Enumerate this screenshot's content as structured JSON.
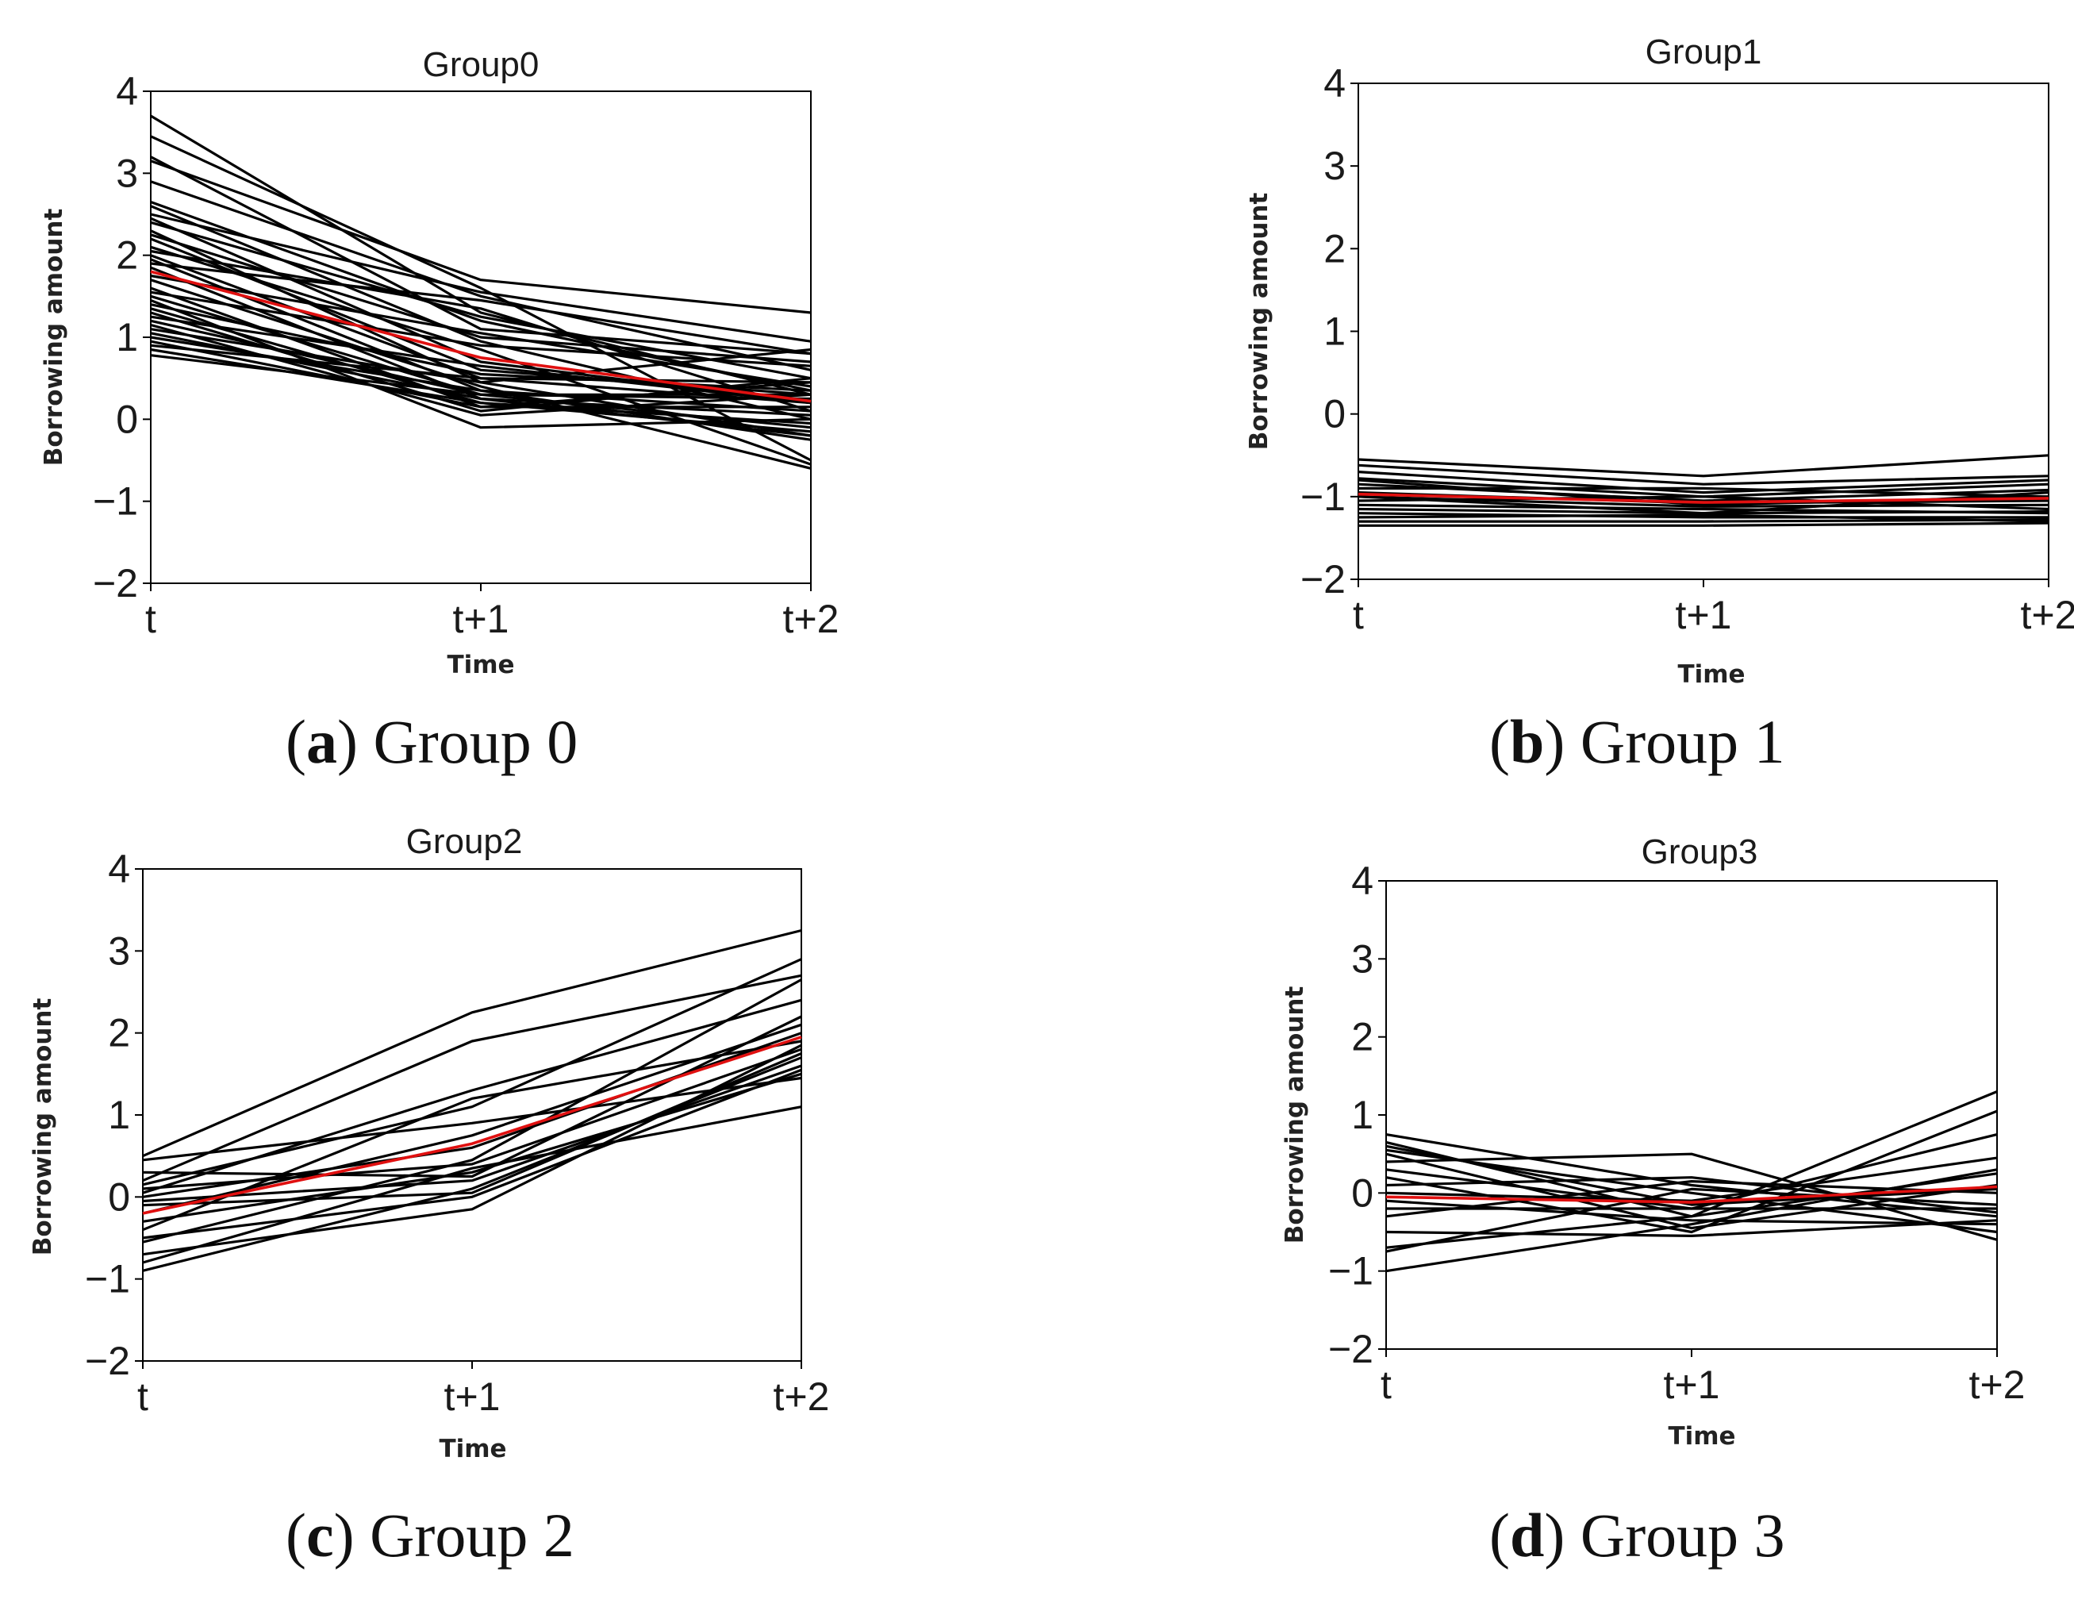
{
  "colors": {
    "sample_line": "#000000",
    "mean_line": "#e01010"
  },
  "chart_data": [
    {
      "type": "line",
      "title": "Group0",
      "xlabel": "Time",
      "ylabel": "Borrowing amount",
      "categories": [
        "t",
        "t+1",
        "t+2"
      ],
      "ylim": [
        -2,
        4
      ],
      "yticks": [
        "−2",
        "−1",
        "0",
        "1",
        "2",
        "3",
        "4"
      ],
      "caption": {
        "letter": "a",
        "text": "Group 0"
      },
      "mean": [
        1.8,
        0.75,
        0.22
      ],
      "series": [
        [
          3.7,
          1.3,
          0.3
        ],
        [
          3.45,
          1.6,
          -0.5
        ],
        [
          3.2,
          1.1,
          0.8
        ],
        [
          3.15,
          1.7,
          1.3
        ],
        [
          2.9,
          1.5,
          0.6
        ],
        [
          2.65,
          1.2,
          0.35
        ],
        [
          2.6,
          0.95,
          0.0
        ],
        [
          2.5,
          1.55,
          0.95
        ],
        [
          2.45,
          0.7,
          0.2
        ],
        [
          2.4,
          1.25,
          0.5
        ],
        [
          2.3,
          0.45,
          -0.2
        ],
        [
          2.25,
          1.0,
          0.7
        ],
        [
          2.2,
          0.6,
          0.3
        ],
        [
          2.1,
          0.85,
          -0.55
        ],
        [
          2.05,
          1.35,
          0.1
        ],
        [
          2.0,
          0.5,
          0.45
        ],
        [
          1.95,
          0.35,
          -0.25
        ],
        [
          1.9,
          1.45,
          0.8
        ],
        [
          1.85,
          0.25,
          0.05
        ],
        [
          1.75,
          1.05,
          0.4
        ],
        [
          1.7,
          0.4,
          -0.6
        ],
        [
          1.6,
          0.15,
          0.15
        ],
        [
          1.55,
          0.9,
          0.65
        ],
        [
          1.5,
          0.3,
          0.25
        ],
        [
          1.45,
          -0.1,
          0.0
        ],
        [
          1.4,
          0.55,
          0.35
        ],
        [
          1.35,
          0.2,
          -0.15
        ],
        [
          1.3,
          0.1,
          0.5
        ],
        [
          1.25,
          0.65,
          0.2
        ],
        [
          1.2,
          0.3,
          -0.1
        ],
        [
          1.15,
          0.05,
          0.3
        ],
        [
          1.1,
          0.45,
          0.85
        ],
        [
          1.05,
          0.25,
          -0.2
        ],
        [
          1.0,
          0.35,
          0.1
        ],
        [
          0.95,
          0.15,
          0.45
        ],
        [
          0.9,
          0.5,
          0.2
        ],
        [
          0.85,
          0.2,
          -0.05
        ],
        [
          0.78,
          0.3,
          0.3
        ]
      ]
    },
    {
      "type": "line",
      "title": "Group1",
      "xlabel": "Time",
      "ylabel": "Borrowing amount",
      "categories": [
        "t",
        "t+1",
        "t+2"
      ],
      "ylim": [
        -2,
        4
      ],
      "yticks": [
        "−2",
        "−1",
        "0",
        "1",
        "2",
        "3",
        "4"
      ],
      "caption": {
        "letter": "b",
        "text": "Group 1"
      },
      "mean": [
        -0.97,
        -1.07,
        -1.02
      ],
      "series": [
        [
          -0.55,
          -0.75,
          -0.5
        ],
        [
          -0.62,
          -0.85,
          -0.75
        ],
        [
          -0.7,
          -0.95,
          -0.8
        ],
        [
          -0.78,
          -1.0,
          -0.85
        ],
        [
          -0.85,
          -1.05,
          -0.92
        ],
        [
          -0.9,
          -0.9,
          -1.0
        ],
        [
          -0.95,
          -1.08,
          -1.05
        ],
        [
          -1.0,
          -1.12,
          -1.1
        ],
        [
          -1.05,
          -1.0,
          -1.15
        ],
        [
          -1.1,
          -1.15,
          -1.2
        ],
        [
          -1.15,
          -1.2,
          -1.18
        ],
        [
          -1.2,
          -1.25,
          -1.25
        ],
        [
          -1.25,
          -1.22,
          -1.3
        ],
        [
          -1.3,
          -1.3,
          -1.28
        ],
        [
          -1.35,
          -1.35,
          -1.32
        ],
        [
          -0.8,
          -1.1,
          -1.0
        ],
        [
          -1.0,
          -1.2,
          -0.95
        ]
      ]
    },
    {
      "type": "line",
      "title": "Group2",
      "xlabel": "Time",
      "ylabel": "Borrowing amount",
      "categories": [
        "t",
        "t+1",
        "t+2"
      ],
      "ylim": [
        -2,
        4
      ],
      "yticks": [
        "−2",
        "−1",
        "0",
        "1",
        "2",
        "3",
        "4"
      ],
      "caption": {
        "letter": "c",
        "text": "Group 2"
      },
      "mean": [
        -0.2,
        0.65,
        1.95
      ],
      "series": [
        [
          0.5,
          2.25,
          3.25
        ],
        [
          0.45,
          0.9,
          1.45
        ],
        [
          0.2,
          1.9,
          2.7
        ],
        [
          0.15,
          1.1,
          2.9
        ],
        [
          0.1,
          0.4,
          1.8
        ],
        [
          0.05,
          1.3,
          2.4
        ],
        [
          0.0,
          0.6,
          2.0
        ],
        [
          -0.05,
          0.2,
          1.6
        ],
        [
          -0.1,
          0.05,
          1.75
        ],
        [
          -0.2,
          0.75,
          2.1
        ],
        [
          -0.3,
          0.3,
          1.5
        ],
        [
          -0.4,
          1.2,
          1.9
        ],
        [
          -0.5,
          0.0,
          1.55
        ],
        [
          -0.55,
          0.45,
          2.65
        ],
        [
          -0.7,
          -0.15,
          1.85
        ],
        [
          -0.8,
          0.35,
          1.1
        ],
        [
          -0.9,
          0.1,
          1.7
        ],
        [
          0.3,
          0.25,
          2.2
        ]
      ]
    },
    {
      "type": "line",
      "title": "Group3",
      "xlabel": "Time",
      "ylabel": "Borrowing amount",
      "categories": [
        "t",
        "t+1",
        "t+2"
      ],
      "ylim": [
        -2,
        4
      ],
      "yticks": [
        "−2",
        "−1",
        "0",
        "1",
        "2",
        "3",
        "4"
      ],
      "caption": {
        "letter": "d",
        "text": "Group 3"
      },
      "mean": [
        -0.05,
        -0.12,
        0.08
      ],
      "series": [
        [
          0.75,
          0.1,
          -0.3
        ],
        [
          0.65,
          -0.3,
          1.3
        ],
        [
          0.55,
          0.0,
          -0.5
        ],
        [
          0.5,
          -0.45,
          0.1
        ],
        [
          0.4,
          0.5,
          -0.6
        ],
        [
          0.3,
          -0.2,
          0.75
        ],
        [
          0.2,
          -0.5,
          1.05
        ],
        [
          0.1,
          0.2,
          -0.25
        ],
        [
          0.0,
          -0.1,
          0.45
        ],
        [
          -0.1,
          -0.35,
          -0.4
        ],
        [
          -0.2,
          -0.2,
          -0.2
        ],
        [
          -0.3,
          0.15,
          0.0
        ],
        [
          -0.5,
          -0.55,
          -0.35
        ],
        [
          -0.7,
          -0.3,
          0.25
        ],
        [
          -0.75,
          0.05,
          -0.15
        ],
        [
          -1.0,
          -0.4,
          0.3
        ],
        [
          0.6,
          -0.15,
          0.05
        ]
      ]
    }
  ]
}
